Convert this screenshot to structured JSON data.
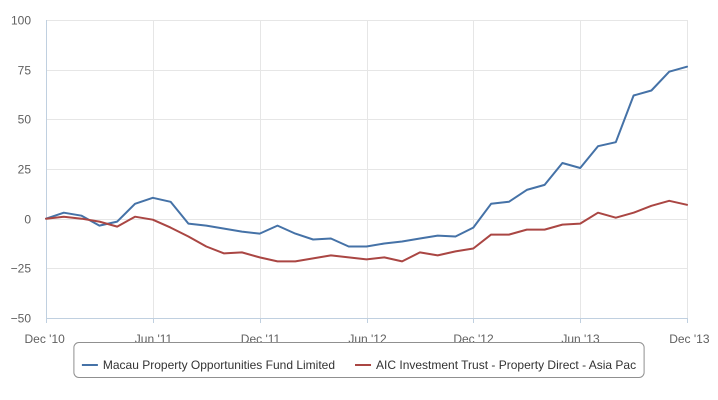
{
  "chart_data": {
    "type": "line",
    "title": "",
    "xlabel": "",
    "ylabel": "",
    "ylim": [
      -50,
      100
    ],
    "yticks": [
      100,
      75,
      50,
      25,
      0,
      -25,
      -50
    ],
    "ytick_labels": [
      "100",
      "75",
      "50",
      "25",
      "0",
      "−25",
      "−50"
    ],
    "xlim": [
      "2010-12",
      "2013-12"
    ],
    "xticks": [
      {
        "date": "2010-12",
        "label": "Dec '10"
      },
      {
        "date": "2011-06",
        "label": "Jun '11"
      },
      {
        "date": "2011-12",
        "label": "Dec '11"
      },
      {
        "date": "2012-06",
        "label": "Jun '12"
      },
      {
        "date": "2012-12",
        "label": "Dec '12"
      },
      {
        "date": "2013-06",
        "label": "Jun '13"
      },
      {
        "date": "2013-12",
        "label": "Dec '13"
      }
    ],
    "grid": true,
    "legend_position": "bottom",
    "x": [
      "2010-12",
      "2011-01",
      "2011-02",
      "2011-03",
      "2011-04",
      "2011-05",
      "2011-06",
      "2011-07",
      "2011-08",
      "2011-09",
      "2011-10",
      "2011-11",
      "2011-12",
      "2012-01",
      "2012-02",
      "2012-03",
      "2012-04",
      "2012-05",
      "2012-06",
      "2012-07",
      "2012-08",
      "2012-09",
      "2012-10",
      "2012-11",
      "2012-12",
      "2013-01",
      "2013-02",
      "2013-03",
      "2013-04",
      "2013-05",
      "2013-06",
      "2013-07",
      "2013-08",
      "2013-09",
      "2013-10",
      "2013-11",
      "2013-12"
    ],
    "series": [
      {
        "name": "Macau Property Opportunities Fund Limited",
        "color": "#4572A7",
        "values": [
          0,
          3,
          1.5,
          -3.5,
          -1.5,
          7.5,
          10.5,
          8.5,
          -2.5,
          -3.5,
          -5,
          -6.5,
          -7.5,
          -3.5,
          -7.5,
          -10.5,
          -10,
          -14,
          -14,
          -12.5,
          -11.5,
          -10,
          -8.5,
          -9,
          -4.5,
          7.5,
          8.5,
          14.5,
          17,
          28,
          25.5,
          36.5,
          38.5,
          62,
          64.5,
          74,
          76.5
        ]
      },
      {
        "name": "AIC Investment Trust - Property Direct - Asia Pac",
        "color": "#AA4643",
        "values": [
          0,
          1,
          0,
          -1.5,
          -4,
          1,
          -0.5,
          -4.5,
          -9,
          -14,
          -17.5,
          -17,
          -19.5,
          -21.5,
          -21.5,
          -20,
          -18.5,
          -19.5,
          -20.5,
          -19.5,
          -21.5,
          -17,
          -18.5,
          -16.5,
          -15,
          -8,
          -8,
          -5.5,
          -5.5,
          -3,
          -2.5,
          3,
          0.5,
          3,
          6.5,
          9,
          7
        ]
      }
    ]
  }
}
